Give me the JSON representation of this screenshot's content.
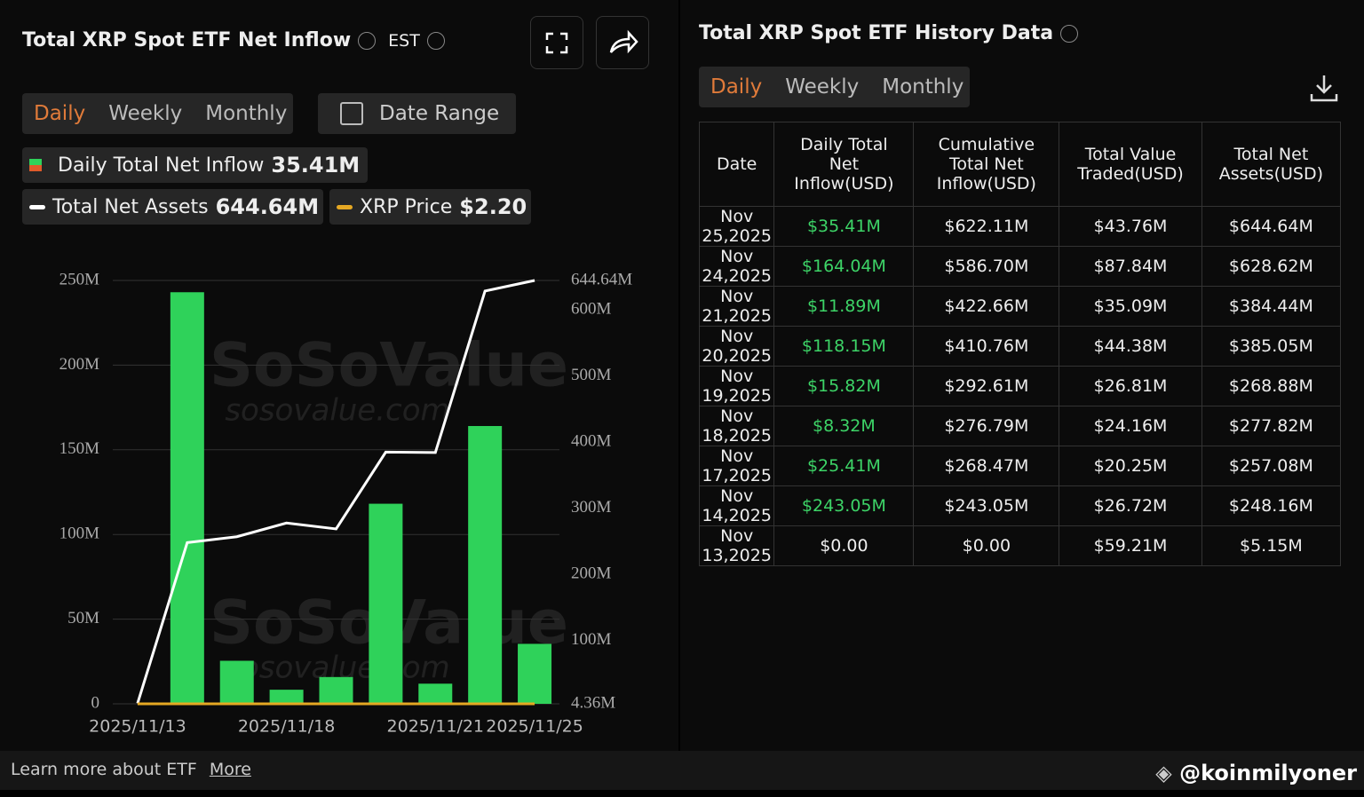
{
  "left": {
    "title": "Total XRP Spot ETF Net Inflow",
    "timezone": "EST",
    "tabs": [
      "Daily",
      "Weekly",
      "Monthly"
    ],
    "date_range": "Date Range"
  },
  "chart_data": {
    "type": "bar",
    "categories": [
      "2025/11/13",
      null,
      null,
      "2025/11/18",
      null,
      null,
      "2025/11/21",
      null,
      "2025/11/25"
    ],
    "series": [
      {
        "name": "Daily Total Net Inflow",
        "color": "#2fd25a",
        "values": [
          0,
          243.05,
          25.41,
          8.32,
          15.82,
          118.15,
          11.89,
          164.04,
          35.41
        ]
      },
      {
        "name": "Total Net Assets",
        "color": "#ffffff",
        "axis": "y2",
        "values": [
          5.15,
          248.16,
          257.08,
          277.82,
          268.88,
          385.05,
          384.44,
          628.62,
          644.64
        ]
      }
    ],
    "legend_values": [
      "35.41M",
      "644.64M"
    ],
    "price_legend": {
      "name": "XRP Price",
      "value": "$2.20",
      "color": "#e5a823"
    },
    "ylim": [
      0,
      250
    ],
    "yticks": [
      {
        "value": 0,
        "label": "0"
      },
      {
        "value": 50,
        "label": "50M"
      },
      {
        "value": 100,
        "label": "100M"
      },
      {
        "value": 150,
        "label": "150M"
      },
      {
        "value": 200,
        "label": "200M"
      },
      {
        "value": 250,
        "label": "250M"
      }
    ],
    "y2lim": [
      4.36,
      644.64
    ],
    "y2ticks": [
      {
        "value": 4.36,
        "label": "4.36M"
      },
      {
        "value": 100,
        "label": "100M"
      },
      {
        "value": 200,
        "label": "200M"
      },
      {
        "value": 300,
        "label": "300M"
      },
      {
        "value": 400,
        "label": "400M"
      },
      {
        "value": 500,
        "label": "500M"
      },
      {
        "value": 600,
        "label": "600M"
      },
      {
        "value": 644.64,
        "label": "644.64M"
      }
    ],
    "grid": true,
    "watermark": [
      "SoSoValue",
      "sosovalue.com"
    ]
  },
  "right": {
    "title": "Total XRP Spot ETF History Data",
    "tabs": [
      "Daily",
      "Weekly",
      "Monthly"
    ],
    "table": {
      "columns": [
        "Date",
        "Daily Total Net Inflow(USD)",
        "Cumulative Total Net Inflow(USD)",
        "Total Value Traded(USD)",
        "Total Net Assets(USD)"
      ],
      "rows": [
        [
          "Nov 25,2025",
          "$35.41M",
          "$622.11M",
          "$43.76M",
          "$644.64M"
        ],
        [
          "Nov 24,2025",
          "$164.04M",
          "$586.70M",
          "$87.84M",
          "$628.62M"
        ],
        [
          "Nov 21,2025",
          "$11.89M",
          "$422.66M",
          "$35.09M",
          "$384.44M"
        ],
        [
          "Nov 20,2025",
          "$118.15M",
          "$410.76M",
          "$44.38M",
          "$385.05M"
        ],
        [
          "Nov 19,2025",
          "$15.82M",
          "$292.61M",
          "$26.81M",
          "$268.88M"
        ],
        [
          "Nov 18,2025",
          "$8.32M",
          "$276.79M",
          "$24.16M",
          "$277.82M"
        ],
        [
          "Nov 17,2025",
          "$25.41M",
          "$268.47M",
          "$20.25M",
          "$257.08M"
        ],
        [
          "Nov 14,2025",
          "$243.05M",
          "$243.05M",
          "$26.72M",
          "$248.16M"
        ],
        [
          "Nov 13,2025",
          "$0.00",
          "$0.00",
          "$59.21M",
          "$5.15M"
        ]
      ]
    }
  },
  "footer": {
    "text": "Learn more about ETF",
    "link": "More",
    "credit": "@koinmilyoner"
  }
}
